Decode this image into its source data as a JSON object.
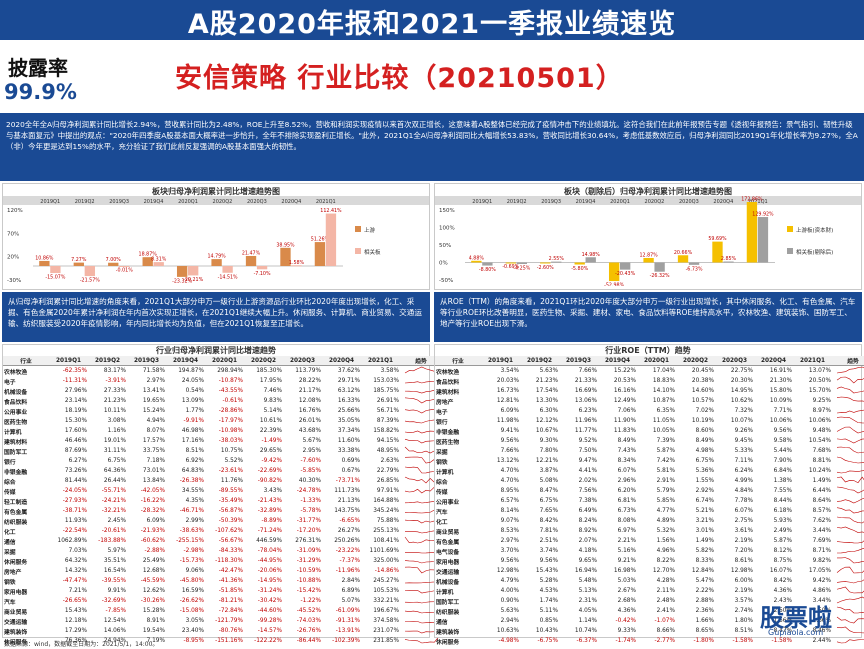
{
  "header": {
    "title": "A股2020年报和2021一季报业绩速览",
    "disclosure_label": "披露率",
    "disclosure_value": "99.9%",
    "subtitle": "安信策略 行业比较（20210501）"
  },
  "intro": "2020全年全A归母净利润累计同比增长2.94%，营收累计同比为2.48%，ROE上升至8.52%，营收和利润实现疫情以来首次双正增长，这意味着A股整体已经完成了疫情冲击下的业绩填坑。这符合我们在此前年报预告专题《透视年报预告：景气指引、韧性升级与基本面复元》中提出的观点：\"2020年四季度A股基本面大概率进一步恰升，全年不排除实现盈利正增长。\"此外，2021Q1全A归母净利润同比大幅增长53.83%，营收同比增长30.64%，考虑低基数效应后，归母净利润同比2019Q1年化增长率为9.27%，全A（非）今年更是达到15%的水平，充分验证了我们此前反复强调的A股基本面强大的韧性。",
  "left_chart": {
    "title": "板块归母净利润累计同比增速趋势图",
    "header_cols": [
      "板块",
      "2019Q1",
      "2019Q2",
      "2019Q3",
      "2019Q4",
      "2020Q1",
      "2020Q2",
      "2020Q3",
      "2020Q4",
      "2021Q1",
      "趋势"
    ],
    "y_ticks": [
      "120%",
      "70%",
      "20%",
      "-30%"
    ],
    "legend": [
      "上游",
      "相关板"
    ],
    "bar_labels": [
      "10.86%",
      "-15.07%",
      "7.27%",
      "-21.57%",
      "7.00%",
      "-0.01%",
      "18.87%",
      "8.31%",
      "-23.32%",
      "-20.21%",
      "14.79%",
      "-14.51%",
      "21.47%",
      "-7.10%",
      "38.95%",
      "1.58%",
      "51.26%",
      "112.41%"
    ]
  },
  "right_chart": {
    "title": "板块（剔除后）归母净利润累计同比增速趋势图",
    "y_ticks": [
      "150%",
      "100%",
      "50%",
      "0%",
      "-50%"
    ],
    "legend": [
      "上游板(资本财)",
      "相关板(剔除后)"
    ],
    "bar_labels": [
      "4.88%",
      "-8.80%",
      "-0.69%",
      "-4.25%",
      "-2.60%",
      "2.55%",
      "-5.80%",
      "14.98%",
      "-52.98%",
      "-20.43%",
      "12.87%",
      "-26.32%",
      "20.66%",
      "-6.73%",
      "59.69%",
      "2.85%",
      "172.86%",
      "129.92%"
    ]
  },
  "left_box": "从归母净利润累计同比增速的角度来看，2021Q1大部分申万一级行业上游资源品行业环比2020年度出现增长，化工、采掘、有色金属2020年累计净利润在年内首次实现正增长，在2021Q1继续大幅上升。休闲服务、计算机、商业贸易、交通运输、纺织服装受2020年疫情影响，年内同比增长均为负值，但在2021Q1恢复至正增长。",
  "right_box": "从ROE（TTM）的角度来看，2021Q1环比2020年度大部分申万一级行业出现增长，其中休闲服务、化工、有色金属、汽车等行业ROE环比改善明显，医药生物、采掘、建材、家电、食品饮料等ROE维持高水平，农林牧渔、建筑装饰、国防军工、地产等行业ROE出现下滑。",
  "left_table": {
    "title": "行业归母净利润累计同比增速趋势",
    "cols": [
      "行业",
      "2019Q1",
      "2019Q2",
      "2019Q3",
      "2019Q4",
      "2020Q1",
      "2020Q2",
      "2020Q3",
      "2020Q4",
      "2021Q1",
      "趋势"
    ],
    "rows": [
      [
        "农林牧渔",
        "-62.35%",
        "83.17%",
        "71.58%",
        "194.87%",
        "298.94%",
        "185.30%",
        "113.79%",
        "37.62%",
        "3.58%"
      ],
      [
        "电子",
        "-11.31%",
        "-3.91%",
        "2.97%",
        "24.05%",
        "-10.87%",
        "17.95%",
        "28.22%",
        "29.71%",
        "153.03%"
      ],
      [
        "机械设备",
        "27.96%",
        "27.33%",
        "13.41%",
        "0.54%",
        "-43.55%",
        "7.46%",
        "21.17%",
        "63.12%",
        "185.75%"
      ],
      [
        "食品饮料",
        "23.14%",
        "21.23%",
        "19.65%",
        "13.09%",
        "-0.61%",
        "9.83%",
        "12.08%",
        "16.33%",
        "26.91%"
      ],
      [
        "公用事业",
        "18.19%",
        "10.11%",
        "15.24%",
        "1.77%",
        "-28.86%",
        "5.14%",
        "16.76%",
        "25.66%",
        "56.71%"
      ],
      [
        "医药生物",
        "15.30%",
        "3.08%",
        "4.94%",
        "-9.91%",
        "-17.97%",
        "10.61%",
        "26.01%",
        "35.05%",
        "87.39%"
      ],
      [
        "计算机",
        "17.60%",
        "1.16%",
        "8.07%",
        "46.98%",
        "-10.98%",
        "22.39%",
        "43.68%",
        "37.34%",
        "158.82%"
      ],
      [
        "建筑材料",
        "46.46%",
        "19.01%",
        "17.57%",
        "17.16%",
        "-38.03%",
        "-1.49%",
        "5.67%",
        "11.60%",
        "94.15%"
      ],
      [
        "国防军工",
        "87.69%",
        "31.11%",
        "33.75%",
        "8.51%",
        "10.75%",
        "29.65%",
        "2.95%",
        "33.38%",
        "48.95%"
      ],
      [
        "银行",
        "6.27%",
        "6.75%",
        "7.18%",
        "6.92%",
        "5.52%",
        "-9.42%",
        "-7.60%",
        "0.69%",
        "2.63%"
      ],
      [
        "非银金融",
        "73.26%",
        "64.36%",
        "73.01%",
        "64.83%",
        "-23.61%",
        "-22.69%",
        "-5.85%",
        "0.67%",
        "22.79%"
      ],
      [
        "综合",
        "81.44%",
        "26.44%",
        "13.84%",
        "-26.38%",
        "11.76%",
        "-90.82%",
        "40.30%",
        "-73.71%",
        "26.85%"
      ],
      [
        "传媒",
        "-24.05%",
        "-55.71%",
        "-42.05%",
        "34.55%",
        "-89.55%",
        "3.43%",
        "-24.78%",
        "111.73%",
        "97.91%"
      ],
      [
        "轻工制造",
        "-27.93%",
        "-24.21%",
        "-16.22%",
        "4.35%",
        "-35.49%",
        "-21.43%",
        "-1.33%",
        "21.13%",
        "164.88%"
      ],
      [
        "有色金属",
        "-38.71%",
        "-32.21%",
        "-28.32%",
        "-46.71%",
        "-56.87%",
        "-32.89%",
        "-5.78%",
        "143.75%",
        "345.24%"
      ],
      [
        "纺织服装",
        "11.93%",
        "2.45%",
        "6.09%",
        "2.99%",
        "-50.39%",
        "-8.89%",
        "-31.77%",
        "-6.65%",
        "75.88%"
      ],
      [
        "化工",
        "-22.54%",
        "-20.61%",
        "-21.93%",
        "-38.63%",
        "-107.62%",
        "-71.24%",
        "-17.20%",
        "26.27%",
        "255.13%"
      ],
      [
        "通信",
        "1062.89%",
        "-183.88%",
        "-60.62%",
        "-255.15%",
        "-56.67%",
        "446.59%",
        "276.31%",
        "250.26%",
        "108.41%"
      ],
      [
        "采掘",
        "7.03%",
        "5.97%",
        "-2.88%",
        "-2.98%",
        "-84.33%",
        "-78.04%",
        "-31.09%",
        "-23.22%",
        "1101.69%"
      ],
      [
        "休闲服务",
        "64.32%",
        "35.51%",
        "25.49%",
        "-15.73%",
        "-118.30%",
        "-44.95%",
        "-31.29%",
        "-7.37%",
        "325.00%"
      ],
      [
        "房地产",
        "14.32%",
        "16.54%",
        "12.68%",
        "9.06%",
        "-42.47%",
        "-20.06%",
        "-10.59%",
        "-11.96%",
        "-14.86%"
      ],
      [
        "钢铁",
        "-47.47%",
        "-39.55%",
        "-45.59%",
        "-45.80%",
        "-41.36%",
        "-14.95%",
        "-10.88%",
        "2.84%",
        "245.27%"
      ],
      [
        "家用电器",
        "7.21%",
        "9.91%",
        "12.62%",
        "16.59%",
        "-51.85%",
        "-31.24%",
        "-15.42%",
        "6.89%",
        "105.53%"
      ],
      [
        "汽车",
        "-26.65%",
        "-32.69%",
        "-30.26%",
        "-26.62%",
        "-81.21%",
        "-30.42%",
        "-1.22%",
        "5.07%",
        "332.21%"
      ],
      [
        "商业贸易",
        "15.43%",
        "-7.85%",
        "15.28%",
        "-15.08%",
        "-72.84%",
        "-44.60%",
        "-45.52%",
        "-61.09%",
        "196.67%"
      ],
      [
        "交通运输",
        "12.18%",
        "12.54%",
        "8.91%",
        "3.05%",
        "-121.79%",
        "-99.28%",
        "-74.03%",
        "-91.31%",
        "374.58%"
      ],
      [
        "建筑装饰",
        "17.29%",
        "14.06%",
        "19.54%",
        "23.40%",
        "-80.76%",
        "-14.57%",
        "-26.76%",
        "-13.91%",
        "231.07%"
      ],
      [
        "休闲服务",
        "76.36%",
        "24.94%",
        "7.19%",
        "-8.95%",
        "-151.16%",
        "-122.22%",
        "-86.44%",
        "-102.39%",
        "231.85%"
      ]
    ]
  },
  "right_table": {
    "title": "行业ROE（TTM）趋势",
    "cols": [
      "行业",
      "2019Q1",
      "2019Q2",
      "2019Q3",
      "2019Q4",
      "2020Q1",
      "2020Q2",
      "2020Q3",
      "2020Q4",
      "2021Q1",
      "趋势"
    ],
    "rows": [
      [
        "农林牧渔",
        "3.54%",
        "5.63%",
        "7.66%",
        "15.22%",
        "17.04%",
        "20.45%",
        "22.75%",
        "16.91%",
        "13.07%"
      ],
      [
        "食品饮料",
        "20.03%",
        "21.23%",
        "21.33%",
        "20.53%",
        "18.83%",
        "20.38%",
        "20.30%",
        "21.30%",
        "20.50%"
      ],
      [
        "建筑材料",
        "16.73%",
        "17.54%",
        "16.69%",
        "16.16%",
        "14.10%",
        "14.60%",
        "14.95%",
        "15.80%",
        "15.70%"
      ],
      [
        "房地产",
        "12.81%",
        "13.30%",
        "13.06%",
        "12.49%",
        "10.87%",
        "10.57%",
        "10.62%",
        "10.09%",
        "9.25%"
      ],
      [
        "电子",
        "6.09%",
        "6.30%",
        "6.23%",
        "7.06%",
        "6.35%",
        "7.02%",
        "7.32%",
        "7.71%",
        "8.97%"
      ],
      [
        "银行",
        "11.98%",
        "12.12%",
        "11.96%",
        "11.90%",
        "11.05%",
        "10.19%",
        "10.07%",
        "10.06%",
        "10.06%"
      ],
      [
        "非银金融",
        "9.41%",
        "10.67%",
        "11.77%",
        "11.83%",
        "10.05%",
        "8.60%",
        "9.26%",
        "9.56%",
        "9.48%"
      ],
      [
        "医药生物",
        "9.56%",
        "9.30%",
        "9.52%",
        "8.49%",
        "7.39%",
        "8.49%",
        "9.45%",
        "9.58%",
        "10.54%"
      ],
      [
        "采掘",
        "7.66%",
        "7.80%",
        "7.50%",
        "7.43%",
        "5.87%",
        "4.98%",
        "5.33%",
        "5.44%",
        "7.68%"
      ],
      [
        "钢铁",
        "13.12%",
        "12.21%",
        "9.47%",
        "8.34%",
        "7.42%",
        "6.75%",
        "7.11%",
        "7.90%",
        "8.81%"
      ],
      [
        "计算机",
        "4.70%",
        "3.87%",
        "4.41%",
        "6.07%",
        "5.81%",
        "5.36%",
        "6.24%",
        "6.84%",
        "10.24%"
      ],
      [
        "综合",
        "4.70%",
        "5.08%",
        "2.02%",
        "2.96%",
        "2.91%",
        "1.55%",
        "4.99%",
        "1.38%",
        "1.49%"
      ],
      [
        "传媒",
        "8.95%",
        "8.47%",
        "7.56%",
        "6.20%",
        "5.79%",
        "2.92%",
        "4.84%",
        "7.55%",
        "6.44%"
      ],
      [
        "公用事业",
        "6.57%",
        "6.75%",
        "7.38%",
        "6.81%",
        "5.85%",
        "6.74%",
        "7.78%",
        "8.44%",
        "8.64%"
      ],
      [
        "汽车",
        "8.14%",
        "7.65%",
        "6.49%",
        "6.73%",
        "4.77%",
        "5.21%",
        "6.07%",
        "6.18%",
        "8.57%"
      ],
      [
        "化工",
        "9.07%",
        "8.42%",
        "8.24%",
        "8.08%",
        "4.89%",
        "3.21%",
        "2.75%",
        "5.93%",
        "7.62%"
      ],
      [
        "商业贸易",
        "8.53%",
        "7.81%",
        "8.92%",
        "6.97%",
        "5.32%",
        "3.01%",
        "3.61%",
        "2.49%",
        "3.44%"
      ],
      [
        "有色金属",
        "2.97%",
        "2.51%",
        "2.07%",
        "2.21%",
        "1.56%",
        "1.49%",
        "2.19%",
        "5.87%",
        "7.69%"
      ],
      [
        "电气设备",
        "3.70%",
        "3.74%",
        "4.18%",
        "5.16%",
        "4.96%",
        "5.82%",
        "7.20%",
        "8.12%",
        "8.71%"
      ],
      [
        "家用电器",
        "9.56%",
        "9.56%",
        "9.65%",
        "9.21%",
        "8.22%",
        "8.33%",
        "8.61%",
        "8.75%",
        "9.82%"
      ],
      [
        "交通运输",
        "12.98%",
        "15.43%",
        "16.94%",
        "16.98%",
        "12.70%",
        "12.84%",
        "12.98%",
        "16.07%",
        "17.05%"
      ],
      [
        "机械设备",
        "4.79%",
        "5.28%",
        "5.48%",
        "5.03%",
        "4.28%",
        "5.47%",
        "6.00%",
        "8.42%",
        "9.42%"
      ],
      [
        "计算机",
        "4.00%",
        "4.53%",
        "5.13%",
        "2.67%",
        "2.11%",
        "2.22%",
        "2.19%",
        "4.36%",
        "4.86%"
      ],
      [
        "国防军工",
        "0.90%",
        "1.74%",
        "2.31%",
        "2.68%",
        "2.48%",
        "2.88%",
        "3.57%",
        "2.43%",
        "3.44%"
      ],
      [
        "纺织服装",
        "5.63%",
        "5.11%",
        "4.05%",
        "4.36%",
        "2.41%",
        "2.36%",
        "2.74%",
        "2.50%",
        "2.50%"
      ],
      [
        "通信",
        "2.94%",
        "0.85%",
        "1.14%",
        "-0.42%",
        "-1.07%",
        "1.66%",
        "1.80%",
        "1.56%",
        "1.66%"
      ],
      [
        "建筑装饰",
        "10.63%",
        "10.43%",
        "10.74%",
        "9.33%",
        "8.66%",
        "8.65%",
        "8.51%",
        "8.47%",
        "8.46%"
      ],
      [
        "休闲服务",
        "-4.98%",
        "-6.75%",
        "-6.37%",
        "-1.74%",
        "-2.77%",
        "-1.80%",
        "-1.58%",
        "-1.58%",
        "2.44%"
      ]
    ]
  },
  "footer": "数据来源：wind，数据截至日期为：2021/5/1，14:00。",
  "watermark": "股票啦",
  "watermark_url": "Gupiaola.com",
  "colors": {
    "accent": "#1a4a94",
    "red": "#d42020",
    "orange": "#d98a4a",
    "pink": "#f4b6a6",
    "yellow": "#f5c000",
    "gray": "#a0a0a0"
  }
}
